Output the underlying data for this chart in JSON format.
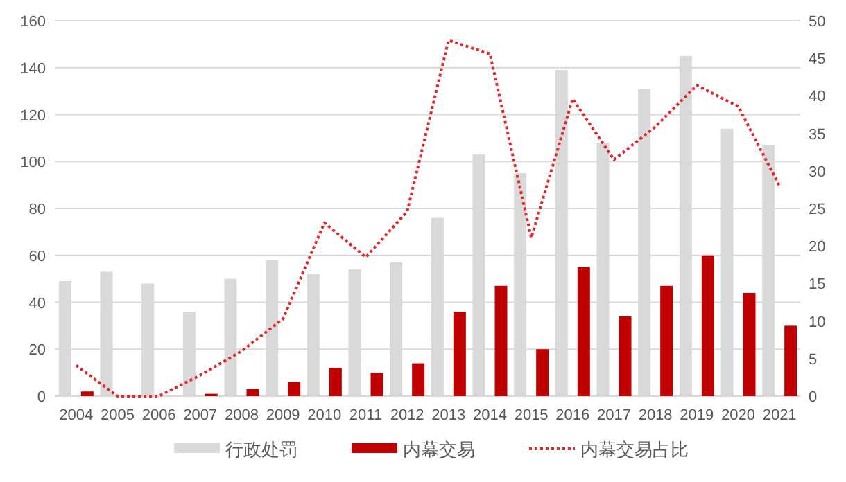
{
  "chart_data": {
    "type": "bar",
    "categories": [
      "2004",
      "2005",
      "2006",
      "2007",
      "2008",
      "2009",
      "2010",
      "2011",
      "2012",
      "2013",
      "2014",
      "2015",
      "2016",
      "2017",
      "2018",
      "2019",
      "2020",
      "2021"
    ],
    "series": [
      {
        "name": "行政处罚",
        "color": "#d9d9d9",
        "values": [
          49,
          53,
          48,
          36,
          50,
          58,
          52,
          54,
          57,
          76,
          103,
          95,
          139,
          108,
          131,
          145,
          114,
          107
        ]
      },
      {
        "name": "内幕交易",
        "color": "#c00000",
        "values": [
          2,
          0,
          0,
          1,
          3,
          6,
          12,
          10,
          14,
          36,
          47,
          20,
          55,
          34,
          47,
          60,
          44,
          30
        ]
      },
      {
        "name": "内幕交易占比",
        "type": "line",
        "axis": "y2",
        "color": "#e0282e",
        "line_style": "dotted",
        "marker": "none",
        "values": [
          4.1,
          0,
          0,
          2.8,
          6,
          10.3,
          23.1,
          18.5,
          24.6,
          47.4,
          45.6,
          21.1,
          39.6,
          31.5,
          35.9,
          41.4,
          38.6,
          28.0
        ]
      }
    ],
    "ylim": [
      0,
      160
    ],
    "yticks": [
      0,
      20,
      40,
      60,
      80,
      100,
      120,
      140,
      160
    ],
    "y2lim": [
      0,
      50
    ],
    "y2ticks": [
      0,
      5,
      10,
      15,
      20,
      25,
      30,
      35,
      40,
      45,
      50
    ],
    "grid": "y",
    "legend": "bottom"
  }
}
